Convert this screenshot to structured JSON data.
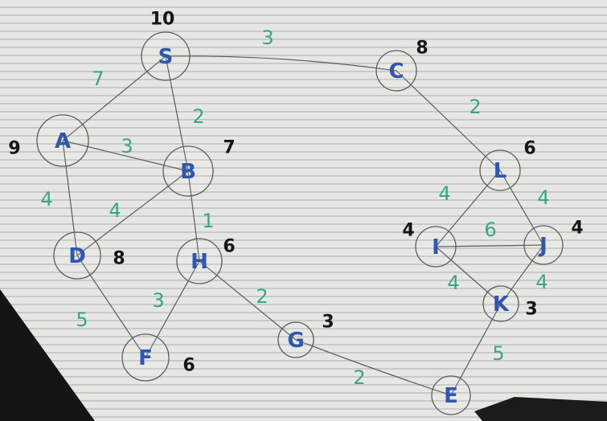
{
  "nodes": [
    {
      "id": "S",
      "label": "S",
      "heuristic": "10"
    },
    {
      "id": "A",
      "label": "A",
      "heuristic": "9"
    },
    {
      "id": "B",
      "label": "B",
      "heuristic": "7"
    },
    {
      "id": "D",
      "label": "D",
      "heuristic": "8"
    },
    {
      "id": "H",
      "label": "H",
      "heuristic": "6"
    },
    {
      "id": "F",
      "label": "F",
      "heuristic": "6"
    },
    {
      "id": "G",
      "label": "G",
      "heuristic": "3"
    },
    {
      "id": "C",
      "label": "C",
      "heuristic": "8"
    },
    {
      "id": "L",
      "label": "L",
      "heuristic": "6"
    },
    {
      "id": "I",
      "label": "I",
      "heuristic": "4"
    },
    {
      "id": "J",
      "label": "J",
      "heuristic": "4"
    },
    {
      "id": "K",
      "label": "K",
      "heuristic": "3"
    },
    {
      "id": "E",
      "label": "E",
      "heuristic": ""
    }
  ],
  "edges": [
    {
      "from": "S",
      "to": "A",
      "weight": "7"
    },
    {
      "from": "S",
      "to": "B",
      "weight": "2"
    },
    {
      "from": "S",
      "to": "C",
      "weight": "3"
    },
    {
      "from": "A",
      "to": "B",
      "weight": "3"
    },
    {
      "from": "A",
      "to": "D",
      "weight": "4"
    },
    {
      "from": "B",
      "to": "D",
      "weight": "4"
    },
    {
      "from": "B",
      "to": "H",
      "weight": "1"
    },
    {
      "from": "D",
      "to": "F",
      "weight": "5"
    },
    {
      "from": "H",
      "to": "F",
      "weight": "3"
    },
    {
      "from": "H",
      "to": "G",
      "weight": "2"
    },
    {
      "from": "G",
      "to": "E",
      "weight": "2"
    },
    {
      "from": "C",
      "to": "L",
      "weight": "2"
    },
    {
      "from": "L",
      "to": "I",
      "weight": "4"
    },
    {
      "from": "L",
      "to": "J",
      "weight": "4"
    },
    {
      "from": "I",
      "to": "J",
      "weight": "6"
    },
    {
      "from": "I",
      "to": "K",
      "weight": "4"
    },
    {
      "from": "J",
      "to": "K",
      "weight": "4"
    },
    {
      "from": "K",
      "to": "E",
      "weight": "5"
    }
  ],
  "colors": {
    "node_text": "#2f56b0",
    "heuristic_text": "#161616",
    "weight_text": "#35a882",
    "edge": "#5a5a5a"
  }
}
